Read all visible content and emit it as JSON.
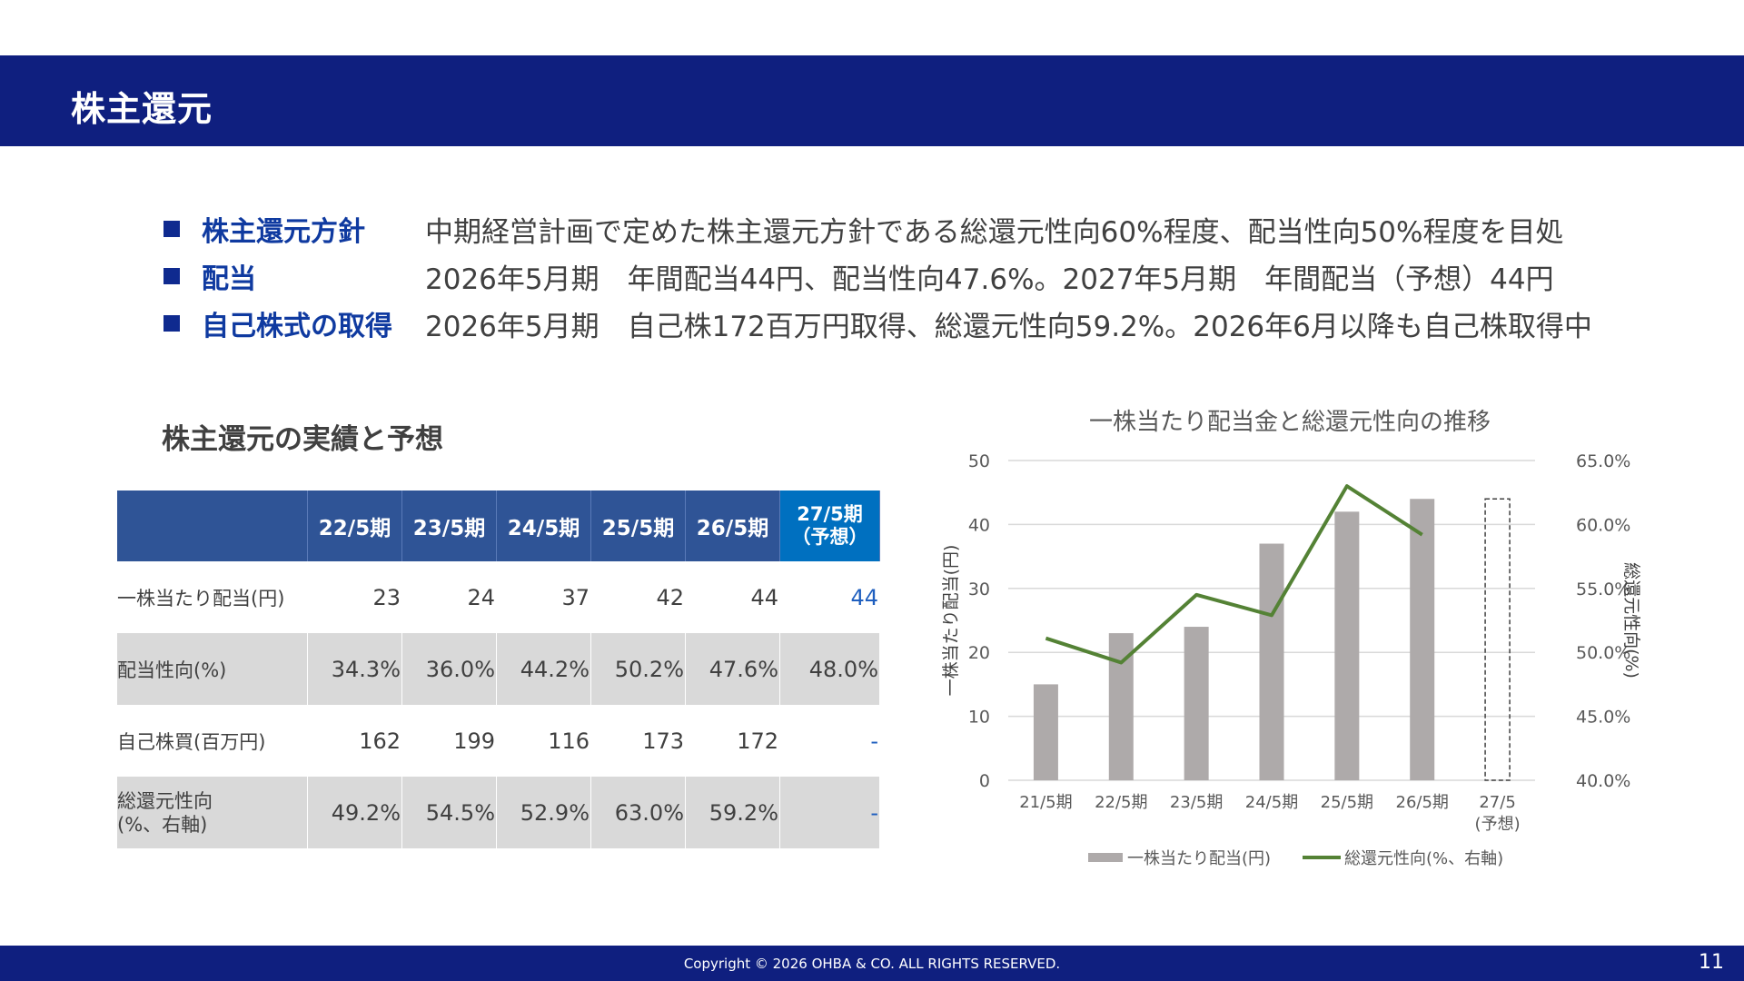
{
  "header": {
    "title": "株主還元"
  },
  "policy": [
    {
      "label": "株主還元方針",
      "text": "中期経営計画で定めた株主還元方針である総還元性向60%程度、配当性向50%程度を目処"
    },
    {
      "label": "配当",
      "text": "2026年5月期　年間配当44円、配当性向47.6%。2027年5月期　年間配当（予想）44円"
    },
    {
      "label": "自己株式の取得",
      "text": "2026年5月期　自己株172百万円取得、総還元性向59.2%。2026年6月以降も自己株取得中"
    }
  ],
  "table": {
    "title": "株主還元の実績と予想",
    "headers": [
      "22/5期",
      "23/5期",
      "24/5期",
      "25/5期",
      "26/5期"
    ],
    "forecast_header": [
      "27/5期",
      "（予想）"
    ],
    "rows": [
      {
        "label": [
          "一株当たり配当(円)"
        ],
        "values": [
          "23",
          "24",
          "37",
          "42",
          "44",
          "44"
        ]
      },
      {
        "label": [
          "配当性向(%)"
        ],
        "values": [
          "34.3%",
          "36.0%",
          "44.2%",
          "50.2%",
          "47.6%",
          "48.0%"
        ]
      },
      {
        "label": [
          "自己株買(百万円)"
        ],
        "values": [
          "162",
          "199",
          "116",
          "173",
          "172",
          "-"
        ]
      },
      {
        "label": [
          "総還元性向",
          "(%、右軸)"
        ],
        "values": [
          "49.2%",
          "54.5%",
          "52.9%",
          "63.0%",
          "59.2%",
          "-"
        ]
      }
    ]
  },
  "chart_data": {
    "type": "bar",
    "title": "一株当たり配当金と総還元性向の推移",
    "categories": [
      [
        "21/5期"
      ],
      [
        "22/5期"
      ],
      [
        "23/5期"
      ],
      [
        "24/5期"
      ],
      [
        "25/5期"
      ],
      [
        "26/5期"
      ],
      [
        "27/5",
        "(予想)"
      ]
    ],
    "ylabel": "一株当たり配当(円)",
    "y2label": "総還元性向(%)",
    "ylim": [
      0,
      50
    ],
    "y2lim": [
      40,
      65
    ],
    "yticks": [
      "0",
      "10",
      "20",
      "30",
      "40",
      "50"
    ],
    "y2ticks": [
      "40.0%",
      "45.0%",
      "50.0%",
      "55.0%",
      "60.0%",
      "65.0%"
    ],
    "grid": true,
    "legend_position": "bottom",
    "series": [
      {
        "name": "一株当たり配当(円)",
        "type": "bar",
        "color": "#aeaaaa",
        "values": [
          15,
          23,
          24,
          37,
          42,
          44,
          44
        ],
        "forecast_index": 6
      },
      {
        "name": "総還元性向(%、右軸)",
        "type": "line",
        "color": "#548235",
        "axis": "right",
        "values": [
          51.1,
          49.2,
          54.5,
          52.9,
          63.0,
          59.2,
          null
        ]
      }
    ]
  },
  "footer": {
    "copyright": "Copyright © 2026 OHBA & CO. ALL RIGHTS RESERVED.",
    "page": "11"
  }
}
